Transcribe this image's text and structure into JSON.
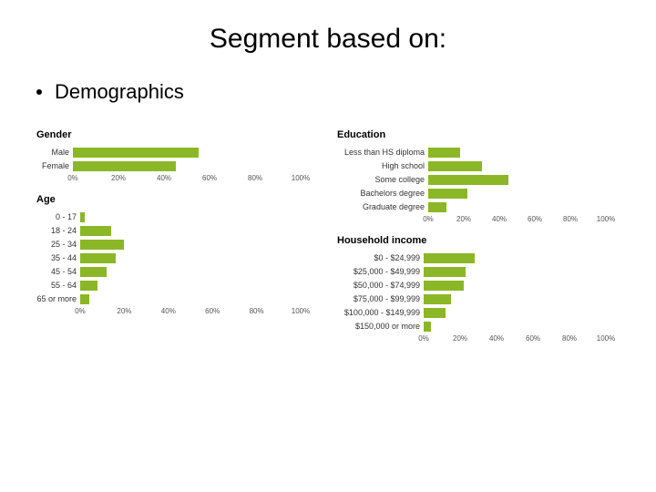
{
  "title": "Segment based on:",
  "bullet": "Demographics",
  "bar_color": "#8bb726",
  "background_color": "#ffffff",
  "text_color": "#333333",
  "title_fontsize": 30,
  "bullet_fontsize": 22,
  "chart_title_fontsize": 11,
  "label_fontsize": 9,
  "tick_fontsize": 8,
  "axis_ticks": [
    "0%",
    "20%",
    "40%",
    "60%",
    "80%",
    "100%"
  ],
  "axis_max": 100,
  "gender": {
    "title": "Gender",
    "label_width": 40,
    "track_width": 250,
    "rows": [
      {
        "label": "Male",
        "value": 55
      },
      {
        "label": "Female",
        "value": 45
      }
    ]
  },
  "age": {
    "title": "Age",
    "label_width": 48,
    "track_width": 242,
    "rows": [
      {
        "label": "0 - 17",
        "value": 2
      },
      {
        "label": "18 - 24",
        "value": 14
      },
      {
        "label": "25 - 34",
        "value": 20
      },
      {
        "label": "35 - 44",
        "value": 16
      },
      {
        "label": "45 - 54",
        "value": 12
      },
      {
        "label": "55 - 64",
        "value": 8
      },
      {
        "label": "65 or more",
        "value": 4
      }
    ]
  },
  "education": {
    "title": "Education",
    "label_width": 100,
    "track_width": 195,
    "rows": [
      {
        "label": "Less than HS diploma",
        "value": 18
      },
      {
        "label": "High school",
        "value": 30
      },
      {
        "label": "Some college",
        "value": 45
      },
      {
        "label": "Bachelors degree",
        "value": 22
      },
      {
        "label": "Graduate degree",
        "value": 10
      }
    ]
  },
  "income": {
    "title": "Household income",
    "label_width": 95,
    "track_width": 200,
    "rows": [
      {
        "label": "$0 - $24,999",
        "value": 28
      },
      {
        "label": "$25,000 - $49,999",
        "value": 23
      },
      {
        "label": "$50,000 - $74,999",
        "value": 22
      },
      {
        "label": "$75,000 - $99,999",
        "value": 15
      },
      {
        "label": "$100,000 - $149,999",
        "value": 12
      },
      {
        "label": "$150,000 or more",
        "value": 4
      }
    ]
  }
}
